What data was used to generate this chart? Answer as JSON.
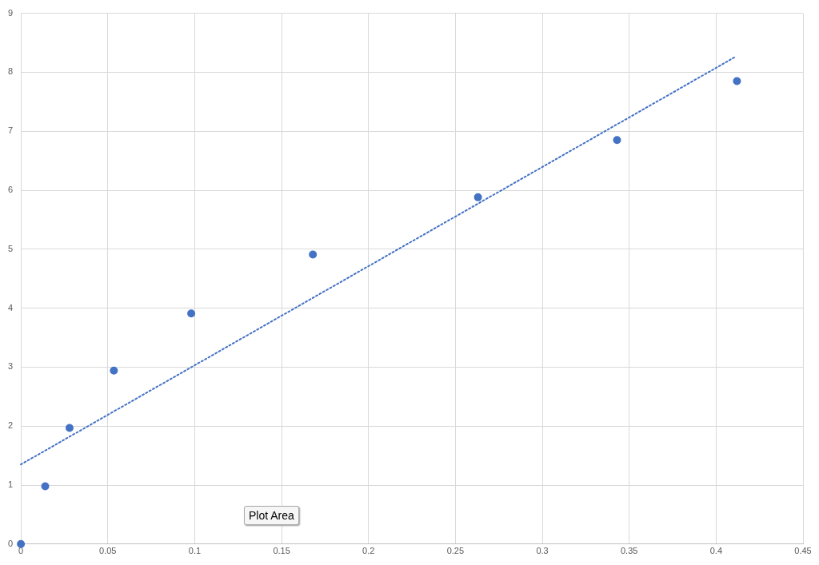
{
  "chart_data": {
    "type": "scatter",
    "xlim": [
      0,
      0.45
    ],
    "ylim": [
      0,
      9
    ],
    "xticks": [
      0,
      0.05,
      0.1,
      0.15,
      0.2,
      0.25,
      0.3,
      0.35,
      0.4,
      0.45
    ],
    "yticks": [
      0,
      1,
      2,
      3,
      4,
      5,
      6,
      7,
      8,
      9
    ],
    "grid": true,
    "legend": false,
    "marker": "circle",
    "series": [
      {
        "type": "scatter",
        "color": "#4472c4",
        "x": [
          0,
          0.014,
          0.028,
          0.0535,
          0.098,
          0.168,
          0.263,
          0.343,
          0.412
        ],
        "values": [
          0,
          0.98,
          1.97,
          2.94,
          3.91,
          4.91,
          5.88,
          6.85,
          7.85
        ]
      },
      {
        "type": "line",
        "color": "#4472c4",
        "line_style": "dotted",
        "marker": "none",
        "x": [
          0,
          0.411
        ],
        "values": [
          1.35,
          8.26
        ]
      }
    ],
    "annotations": [
      "Plot Area"
    ]
  }
}
